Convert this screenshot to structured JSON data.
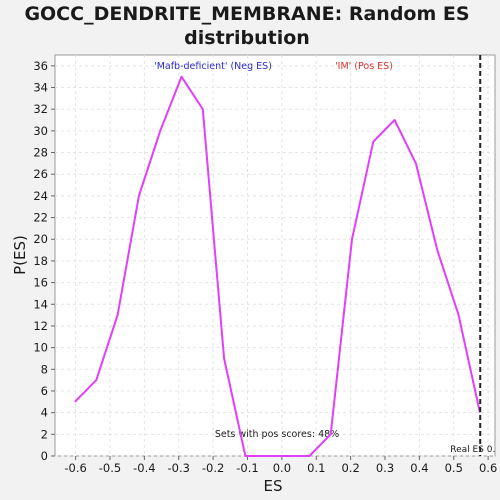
{
  "chart_data": {
    "type": "line",
    "title_line1": "GOCC_DENDRITE_MEMBRANE: Random ES",
    "title_line2": "distribution",
    "xlabel": "ES",
    "ylabel": "P(ES)",
    "xlim": [
      -0.66,
      0.62
    ],
    "ylim": [
      0,
      37
    ],
    "x_ticks": [
      "-0.6",
      "-0.5",
      "-0.4",
      "-0.3",
      "-0.2",
      "-0.1",
      "0.0",
      "0.1",
      "0.2",
      "0.3",
      "0.4",
      "0.5",
      "0.6"
    ],
    "x_tick_values": [
      -0.6,
      -0.5,
      -0.4,
      -0.3,
      -0.2,
      -0.1,
      0.0,
      0.1,
      0.2,
      0.3,
      0.4,
      0.5,
      0.6
    ],
    "y_ticks": [
      "0",
      "2",
      "4",
      "6",
      "8",
      "10",
      "12",
      "14",
      "16",
      "18",
      "20",
      "22",
      "24",
      "26",
      "28",
      "30",
      "32",
      "34",
      "36"
    ],
    "y_tick_values": [
      0,
      2,
      4,
      6,
      8,
      10,
      12,
      14,
      16,
      18,
      20,
      22,
      24,
      26,
      28,
      30,
      32,
      34,
      36
    ],
    "grid": true,
    "series": [
      {
        "color": "#e040fb",
        "x": [
          -0.602,
          -0.54,
          -0.478,
          -0.416,
          -0.354,
          -0.292,
          -0.23,
          -0.168,
          -0.106,
          -0.044,
          0.018,
          0.08,
          0.142,
          0.204,
          0.266,
          0.328,
          0.39,
          0.452,
          0.514,
          0.576
        ],
        "y": [
          5,
          7,
          13,
          24,
          30,
          35,
          32,
          9,
          0,
          0,
          0,
          0,
          2,
          20,
          29,
          31,
          27,
          19,
          13,
          4
        ]
      }
    ],
    "annotations": {
      "neg_label": "'Mafb-deficient' (Neg ES)",
      "neg_color": "#2b2bcc",
      "pos_label": "'IM' (Pos ES)",
      "pos_color": "#e03030",
      "pos_scores": "Sets with pos scores: 48%",
      "real_es_label": "Real ES 0.6",
      "real_es": 0.577
    }
  }
}
